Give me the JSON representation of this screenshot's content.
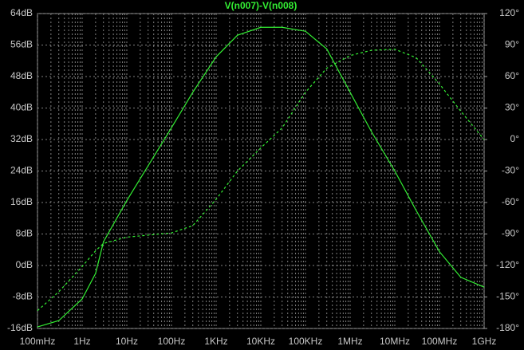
{
  "chart_data": {
    "type": "line",
    "title": "V(n007)-V(n008)",
    "x": [
      0.1,
      0.3,
      1,
      2,
      3,
      10,
      100,
      300,
      1000,
      3000,
      10000,
      30000,
      100000,
      300000,
      1000000,
      3000000,
      10000000,
      30000000,
      100000000,
      300000000,
      1000000000
    ],
    "series": [
      {
        "color": "#33ee33",
        "line_style": "solid",
        "axis": "y",
        "values": [
          -15.6,
          -14,
          -8.5,
          -2,
          6,
          16.5,
          35,
          44,
          53,
          58.5,
          60.5,
          60.5,
          59.5,
          55,
          44,
          34,
          24,
          14,
          3.5,
          -3,
          -5.5
        ]
      },
      {
        "color": "#33ee33",
        "line_style": "dashed",
        "axis": "y2",
        "values": [
          -163,
          -145,
          -121,
          -106,
          -99,
          -93,
          -89,
          -82,
          -57,
          -30,
          -8,
          11,
          45,
          68,
          80,
          85,
          86,
          78,
          53,
          27,
          0
        ]
      }
    ],
    "xscale": "log",
    "xlim": [
      0.1,
      1000000000
    ],
    "xticks": [
      {
        "value": 0.1,
        "label": "100mHz"
      },
      {
        "value": 1,
        "label": "1Hz"
      },
      {
        "value": 10,
        "label": "10Hz"
      },
      {
        "value": 100,
        "label": "100Hz"
      },
      {
        "value": 1000,
        "label": "1KHz"
      },
      {
        "value": 10000,
        "label": "10KHz"
      },
      {
        "value": 100000,
        "label": "100KHz"
      },
      {
        "value": 1000000,
        "label": "1MHz"
      },
      {
        "value": 10000000,
        "label": "10MHz"
      },
      {
        "value": 100000000,
        "label": "100MHz"
      },
      {
        "value": 1000000000,
        "label": "1GHz"
      }
    ],
    "ylim": [
      -16,
      64
    ],
    "yticks": [
      {
        "value": -16,
        "label": "-16dB"
      },
      {
        "value": -8,
        "label": "-8dB"
      },
      {
        "value": 0,
        "label": "0dB"
      },
      {
        "value": 8,
        "label": "8dB"
      },
      {
        "value": 16,
        "label": "16dB"
      },
      {
        "value": 24,
        "label": "24dB"
      },
      {
        "value": 32,
        "label": "32dB"
      },
      {
        "value": 40,
        "label": "40dB"
      },
      {
        "value": 48,
        "label": "48dB"
      },
      {
        "value": 56,
        "label": "56dB"
      },
      {
        "value": 64,
        "label": "64dB"
      }
    ],
    "y2lim": [
      -180,
      120
    ],
    "y2ticks": [
      {
        "value": -180,
        "label": "-180°"
      },
      {
        "value": -150,
        "label": "-150°"
      },
      {
        "value": -120,
        "label": "-120°"
      },
      {
        "value": -90,
        "label": "-90°"
      },
      {
        "value": -60,
        "label": "-60°"
      },
      {
        "value": -30,
        "label": "-30°"
      },
      {
        "value": 0,
        "label": "0°"
      },
      {
        "value": 30,
        "label": "30°"
      },
      {
        "value": 60,
        "label": "60°"
      },
      {
        "value": 90,
        "label": "90°"
      },
      {
        "value": 120,
        "label": "120°"
      }
    ],
    "grid": true,
    "minor_grid": true
  }
}
